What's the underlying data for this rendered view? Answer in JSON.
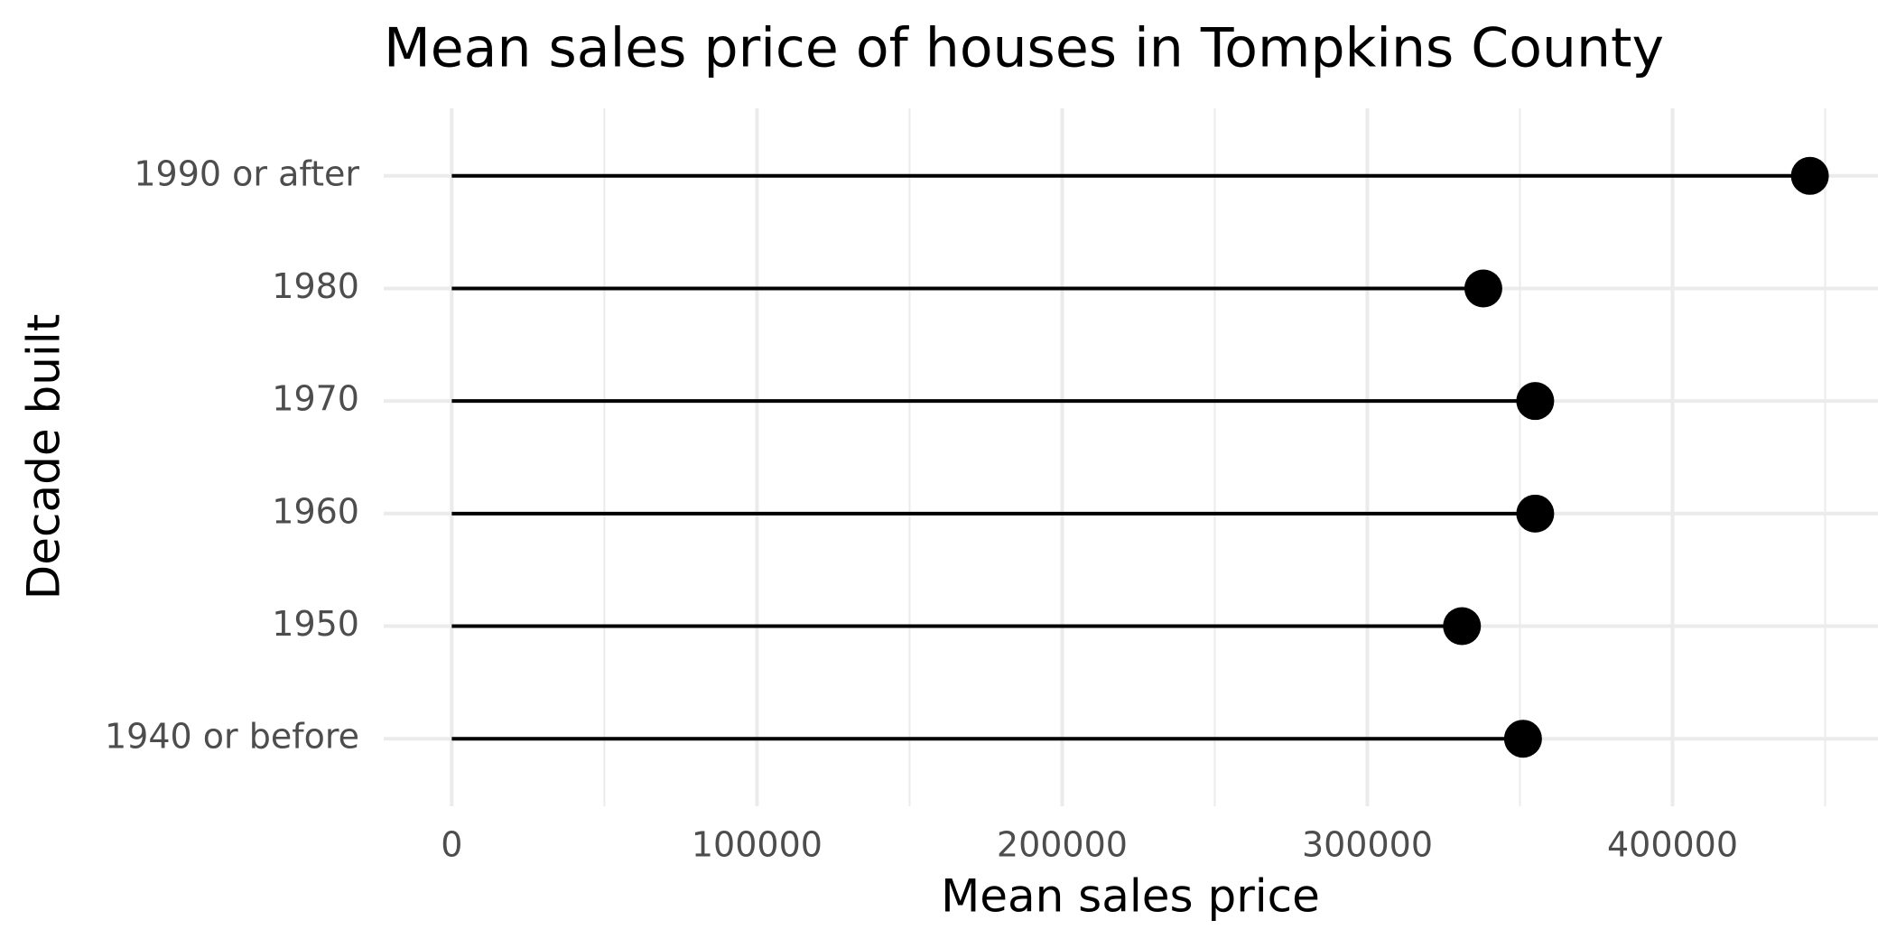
{
  "chart_data": {
    "type": "lollipop",
    "title": "Mean sales price of houses in Tompkins County",
    "x_label": "Mean sales price",
    "y_label": "Decade built",
    "categories": [
      "1940 or before",
      "1950",
      "1960",
      "1970",
      "1980",
      "1990 or after"
    ],
    "values": [
      351000,
      331000,
      355000,
      355000,
      338000,
      445000
    ],
    "color": "#000000",
    "xlim": [
      -22300,
      467300
    ],
    "xticks": [
      0,
      100000,
      200000,
      300000,
      400000
    ],
    "xminor": [
      50000,
      150000,
      250000,
      350000,
      450000
    ],
    "grid": true
  }
}
